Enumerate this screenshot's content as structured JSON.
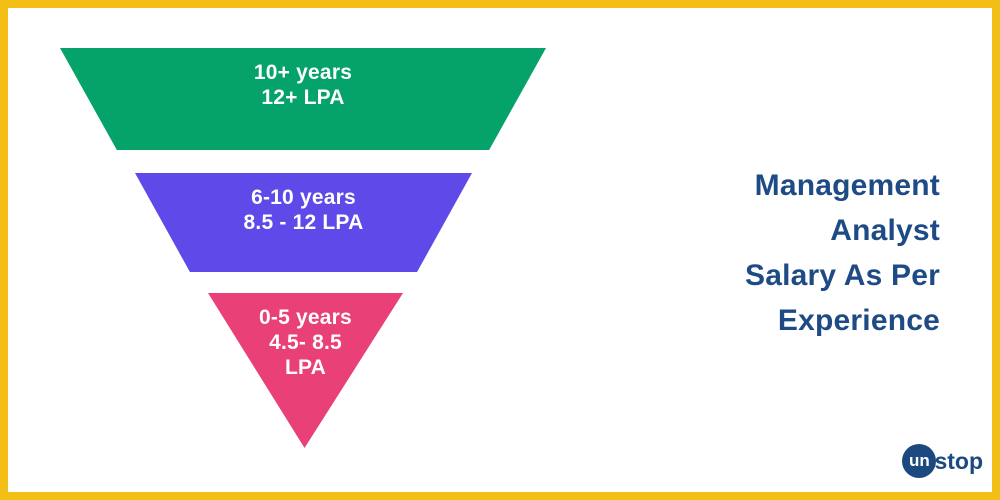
{
  "frame": {
    "border_color": "#F3BF17",
    "background_color": "#FFFFFF"
  },
  "title": {
    "lines": [
      "Management",
      "Analyst",
      "Salary As Per",
      "Experience"
    ],
    "color": "#1E4B85"
  },
  "chart_data": {
    "type": "funnel",
    "orientation": "inverted",
    "title": "Management Analyst Salary As Per Experience",
    "text_color": "#FFFFFF",
    "levels": [
      {
        "experience": "10+ years",
        "salary": "12+ LPA",
        "lines": [
          "10+ years",
          "12+ LPA"
        ],
        "color": "#05A369"
      },
      {
        "experience": "6-10 years",
        "salary": "8.5 - 12 LPA",
        "lines": [
          "6-10 years",
          "8.5 - 12 LPA"
        ],
        "color": "#5E4AE8"
      },
      {
        "experience": "0-5 years",
        "salary": "4.5- 8.5 LPA",
        "lines": [
          "0-5 years",
          "4.5- 8.5",
          "LPA"
        ],
        "color": "#E94077"
      }
    ]
  },
  "logo": {
    "circle_text": "un",
    "suffix_text": "stop",
    "color": "#1C4980"
  }
}
